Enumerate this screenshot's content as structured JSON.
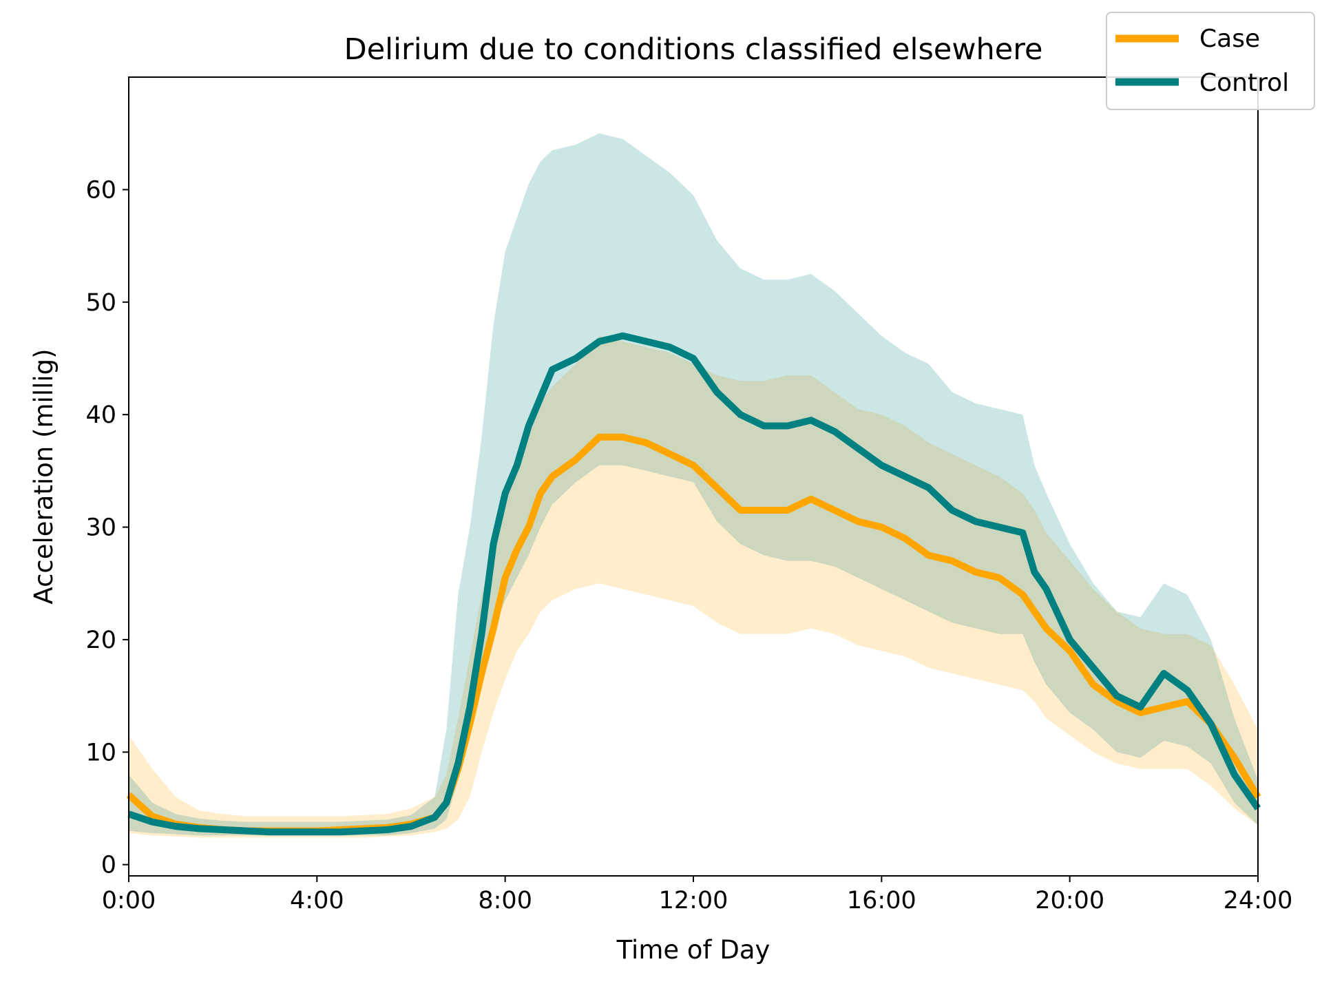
{
  "chart_data": {
    "type": "line",
    "title": "Delirium due to conditions classified elsewhere",
    "xlabel": "Time of Day",
    "ylabel": "Acceleration (millig)",
    "xlim": [
      0,
      24
    ],
    "ylim": [
      -1,
      70
    ],
    "x_ticks": [
      0,
      4,
      8,
      12,
      16,
      20,
      24
    ],
    "x_tick_labels": [
      "0:00",
      "4:00",
      "8:00",
      "12:00",
      "16:00",
      "20:00",
      "24:00"
    ],
    "y_ticks": [
      0,
      10,
      20,
      30,
      40,
      50,
      60
    ],
    "y_tick_labels": [
      "0",
      "10",
      "20",
      "30",
      "40",
      "50",
      "60"
    ],
    "grid": false,
    "legend": {
      "position": "top-right",
      "entries": [
        "Case",
        "Control"
      ]
    },
    "x": [
      0,
      0.5,
      1,
      1.5,
      2,
      2.5,
      3,
      3.5,
      4,
      4.5,
      5,
      5.5,
      6,
      6.5,
      6.75,
      7,
      7.25,
      7.5,
      7.75,
      8,
      8.25,
      8.5,
      8.75,
      9,
      9.5,
      10,
      10.5,
      11,
      11.5,
      12,
      12.5,
      13,
      13.5,
      14,
      14.5,
      15,
      15.5,
      16,
      16.5,
      17,
      17.5,
      18,
      18.5,
      19,
      19.25,
      19.5,
      20,
      20.5,
      21,
      21.5,
      22,
      22.5,
      23,
      23.5,
      24
    ],
    "series": [
      {
        "name": "Case",
        "color": "#ffa500",
        "values": [
          6.2,
          4.3,
          3.6,
          3.3,
          3.1,
          3.0,
          3.0,
          3.0,
          3.0,
          3.1,
          3.2,
          3.3,
          3.6,
          4.2,
          5.5,
          8.5,
          12.5,
          17.0,
          21.0,
          25.5,
          28.0,
          30.0,
          33.0,
          34.5,
          36.0,
          38.0,
          38.0,
          37.5,
          36.5,
          35.5,
          33.5,
          31.5,
          31.5,
          31.5,
          32.5,
          31.5,
          30.5,
          30.0,
          29.0,
          27.5,
          27.0,
          26.0,
          25.5,
          24.0,
          22.5,
          21.0,
          19.0,
          16.0,
          14.5,
          13.5,
          14.0,
          14.5,
          12.5,
          9.5,
          6.0
        ],
        "lower": [
          2.8,
          2.6,
          2.5,
          2.4,
          2.4,
          2.4,
          2.4,
          2.4,
          2.4,
          2.4,
          2.4,
          2.5,
          2.6,
          2.9,
          3.2,
          4.0,
          6.0,
          10.0,
          13.5,
          16.5,
          19.0,
          20.5,
          22.5,
          23.5,
          24.5,
          25.0,
          24.5,
          24.0,
          23.5,
          23.0,
          21.5,
          20.5,
          20.5,
          20.5,
          21.0,
          20.5,
          19.5,
          19.0,
          18.5,
          17.5,
          17.0,
          16.5,
          16.0,
          15.5,
          14.5,
          13.0,
          11.5,
          10.0,
          9.0,
          8.5,
          8.5,
          8.5,
          7.0,
          5.0,
          3.5
        ],
        "upper": [
          11.5,
          8.5,
          6.0,
          4.8,
          4.5,
          4.3,
          4.3,
          4.3,
          4.3,
          4.3,
          4.4,
          4.5,
          5.0,
          6.0,
          8.0,
          13.0,
          18.5,
          24.0,
          28.0,
          32.5,
          35.5,
          38.0,
          41.0,
          42.5,
          44.5,
          47.0,
          46.5,
          46.0,
          45.5,
          44.5,
          43.5,
          43.0,
          43.0,
          43.5,
          43.5,
          42.0,
          40.5,
          40.0,
          39.0,
          37.5,
          36.5,
          35.5,
          34.5,
          33.0,
          31.5,
          29.5,
          27.0,
          24.5,
          22.5,
          21.0,
          20.5,
          20.5,
          19.5,
          16.0,
          12.0
        ]
      },
      {
        "name": "Control",
        "color": "#008080",
        "values": [
          4.5,
          3.8,
          3.4,
          3.2,
          3.1,
          3.0,
          2.9,
          2.9,
          2.9,
          2.9,
          3.0,
          3.1,
          3.4,
          4.2,
          5.5,
          9.0,
          14.0,
          20.5,
          28.5,
          33.0,
          35.5,
          39.0,
          41.5,
          44.0,
          45.0,
          46.5,
          47.0,
          46.5,
          46.0,
          45.0,
          42.0,
          40.0,
          39.0,
          39.0,
          39.5,
          38.5,
          37.0,
          35.5,
          34.5,
          33.5,
          31.5,
          30.5,
          30.0,
          29.5,
          26.0,
          24.5,
          20.0,
          17.5,
          15.0,
          14.0,
          17.0,
          15.5,
          12.5,
          8.0,
          5.0
        ],
        "lower": [
          3.0,
          2.8,
          2.7,
          2.6,
          2.6,
          2.6,
          2.6,
          2.6,
          2.6,
          2.6,
          2.6,
          2.6,
          2.8,
          3.2,
          4.0,
          7.5,
          12.0,
          17.5,
          21.0,
          23.5,
          25.5,
          27.5,
          30.0,
          32.0,
          34.0,
          35.5,
          35.5,
          35.0,
          34.5,
          34.0,
          30.5,
          28.5,
          27.5,
          27.0,
          27.0,
          26.5,
          25.5,
          24.5,
          23.5,
          22.5,
          21.5,
          21.0,
          20.5,
          20.5,
          18.0,
          16.0,
          13.5,
          12.0,
          10.0,
          9.5,
          11.0,
          10.5,
          9.0,
          5.5,
          3.5
        ],
        "upper": [
          8.0,
          5.5,
          4.5,
          4.1,
          3.9,
          3.8,
          3.8,
          3.8,
          3.8,
          3.8,
          3.9,
          4.0,
          4.4,
          6.0,
          12.0,
          24.0,
          30.0,
          38.0,
          48.0,
          54.5,
          57.5,
          60.5,
          62.5,
          63.5,
          64.0,
          65.0,
          64.5,
          63.0,
          61.5,
          59.5,
          55.5,
          53.0,
          52.0,
          52.0,
          52.5,
          51.0,
          49.0,
          47.0,
          45.5,
          44.5,
          42.0,
          41.0,
          40.5,
          40.0,
          35.5,
          33.0,
          28.5,
          25.0,
          22.5,
          22.0,
          25.0,
          24.0,
          20.0,
          13.0,
          7.5
        ]
      }
    ]
  }
}
